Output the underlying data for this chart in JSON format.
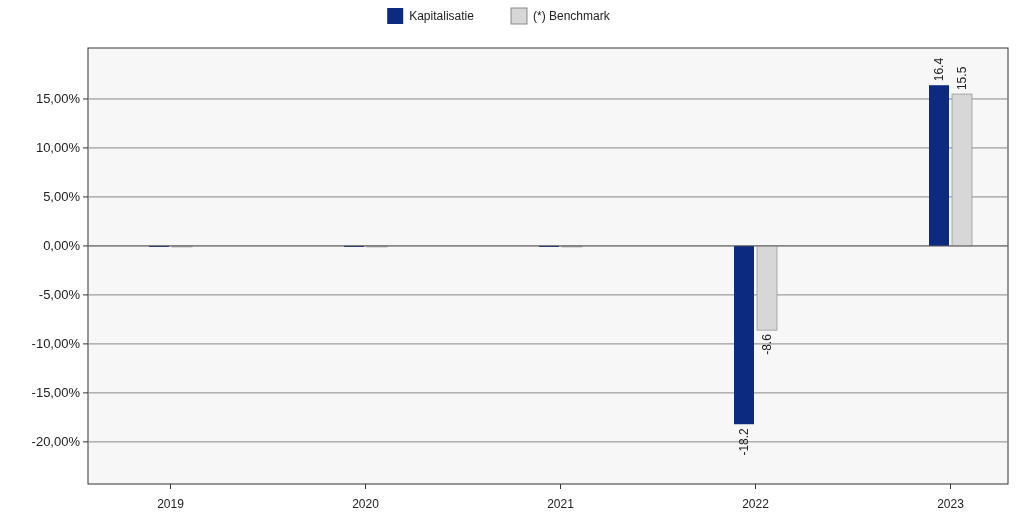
{
  "chart_data": {
    "type": "bar",
    "categories": [
      "2019",
      "2020",
      "2021",
      "2022",
      "2023"
    ],
    "series": [
      {
        "name": "Kapitalisatie",
        "color": "#0b2a80",
        "values": [
          0,
          0,
          0,
          -18.2,
          16.4
        ],
        "value_labels": [
          null,
          null,
          null,
          "-18.2",
          "16.4"
        ]
      },
      {
        "name": "(*) Benchmark",
        "color": "#d7d7d7",
        "values": [
          0,
          0,
          0,
          -8.6,
          15.5
        ],
        "value_labels": [
          null,
          null,
          null,
          "-8.6",
          "15.5"
        ]
      }
    ],
    "ylim": [
      -24.3,
      20.2
    ],
    "yticks": [
      {
        "value": -20,
        "label": "-20,00%"
      },
      {
        "value": -15,
        "label": "-15,00%"
      },
      {
        "value": -10,
        "label": "-10,00%"
      },
      {
        "value": -5,
        "label": "-5,00%"
      },
      {
        "value": 0,
        "label": "0,00%"
      },
      {
        "value": 5,
        "label": "5,00%"
      },
      {
        "value": 10,
        "label": "10,00%"
      },
      {
        "value": 15,
        "label": "15,00%"
      }
    ],
    "grid": "y",
    "legend": "top"
  }
}
